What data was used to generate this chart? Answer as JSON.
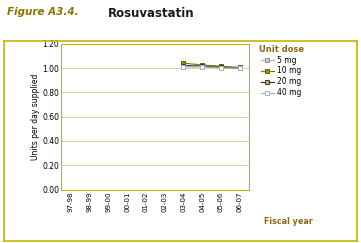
{
  "title_prefix": "Figure A3.4.",
  "title_main": "Rosuvastatin",
  "fiscal_years": [
    "97-98",
    "98-99",
    "99-00",
    "00-01",
    "01-02",
    "02-03",
    "03-04",
    "04-05",
    "05-06",
    "06-07"
  ],
  "series": {
    "5 mg": [
      null,
      null,
      null,
      null,
      null,
      null,
      1.02,
      1.015,
      1.01,
      1.0
    ],
    "10 mg": [
      null,
      null,
      null,
      null,
      null,
      null,
      1.04,
      1.025,
      1.015,
      1.005
    ],
    "20 mg": [
      null,
      null,
      null,
      null,
      null,
      null,
      1.02,
      1.015,
      1.005,
      1.0
    ],
    "40 mg": [
      null,
      null,
      null,
      null,
      null,
      null,
      1.01,
      1.01,
      1.0,
      1.0
    ]
  },
  "line_colors": {
    "5 mg": "#b0b0b0",
    "10 mg": "#808000",
    "20 mg": "#3a3a3a",
    "40 mg": "#a0b0c8"
  },
  "marker_face_colors": {
    "5 mg": "#c8c8c8",
    "10 mg": "#9a9000",
    "20 mg": "#c8a870",
    "40 mg": "#ffffff"
  },
  "marker_edge_colors": {
    "5 mg": "#909090",
    "10 mg": "#606000",
    "20 mg": "#3a3a3a",
    "40 mg": "#a0b0c8"
  },
  "ylabel": "Units per day supplied",
  "xlabel": "Fiscal year",
  "ylim": [
    0.0,
    1.2
  ],
  "yticks": [
    0.0,
    0.2,
    0.4,
    0.6,
    0.8,
    1.0,
    1.2
  ],
  "legend_title": "Unit dose",
  "bg_color": "#ffffff",
  "plot_bg": "#ffffff",
  "outer_border_color": "#c8b400",
  "grid_color": "#d8cc88",
  "title_color": "#8b7300",
  "legend_title_color": "#8b6914",
  "xlabel_color": "#8b6914"
}
